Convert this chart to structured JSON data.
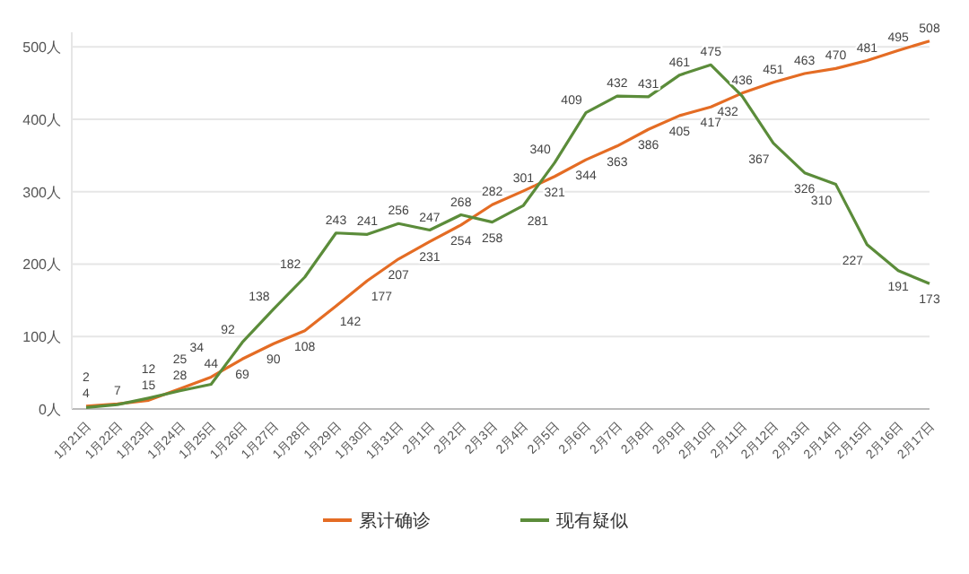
{
  "chart_data": {
    "type": "line",
    "categories": [
      "1月21日",
      "1月22日",
      "1月23日",
      "1月24日",
      "1月25日",
      "1月26日",
      "1月27日",
      "1月28日",
      "1月29日",
      "1月30日",
      "1月31日",
      "2月1日",
      "2月2日",
      "2月3日",
      "2月4日",
      "2月5日",
      "2月6日",
      "2月7日",
      "2月8日",
      "2月9日",
      "2月10日",
      "2月11日",
      "2月12日",
      "2月13日",
      "2月14日",
      "2月15日",
      "2月16日",
      "2月17日"
    ],
    "series": [
      {
        "name": "累计确诊",
        "color": "#e46c24",
        "values": [
          4,
          7,
          12,
          28,
          44,
          69,
          90,
          108,
          142,
          177,
          207,
          231,
          254,
          282,
          301,
          321,
          344,
          363,
          386,
          405,
          417,
          436,
          451,
          463,
          470,
          481,
          495,
          508
        ],
        "value_labels": [
          "4",
          "7",
          "12",
          "28",
          "44",
          "69",
          "90",
          "108",
          "142",
          "177",
          "207",
          "231",
          "254",
          "282",
          "301",
          "321",
          "344",
          "363",
          "386",
          "405",
          "417",
          "436",
          "451",
          "463",
          "470",
          "481",
          "495",
          "508"
        ]
      },
      {
        "name": "现有疑似",
        "color": "#5b8c3a",
        "values": [
          2,
          6,
          15,
          25,
          34,
          92,
          138,
          182,
          243,
          241,
          256,
          247,
          268,
          258,
          281,
          340,
          409,
          432,
          431,
          461,
          475,
          432,
          367,
          326,
          310,
          227,
          191,
          173
        ],
        "value_labels": [
          "2",
          null,
          "15",
          "25",
          "34",
          "92",
          "138",
          "182",
          "243",
          "241",
          "256",
          "247",
          "268",
          "258",
          "281",
          "340",
          "409",
          "432",
          "431",
          "461",
          "475",
          "432",
          "367",
          "326",
          "310",
          "227",
          "191",
          "173"
        ]
      }
    ],
    "ylim": [
      0,
      520
    ],
    "yticks": [
      {
        "value": 0,
        "label": "0人"
      },
      {
        "value": 100,
        "label": "100人"
      },
      {
        "value": 200,
        "label": "200人"
      },
      {
        "value": 300,
        "label": "300人"
      },
      {
        "value": 400,
        "label": "400人"
      },
      {
        "value": 500,
        "label": "500人"
      }
    ],
    "grid": "y",
    "legend": "bottom",
    "marker": "none",
    "line_style": "solid"
  }
}
